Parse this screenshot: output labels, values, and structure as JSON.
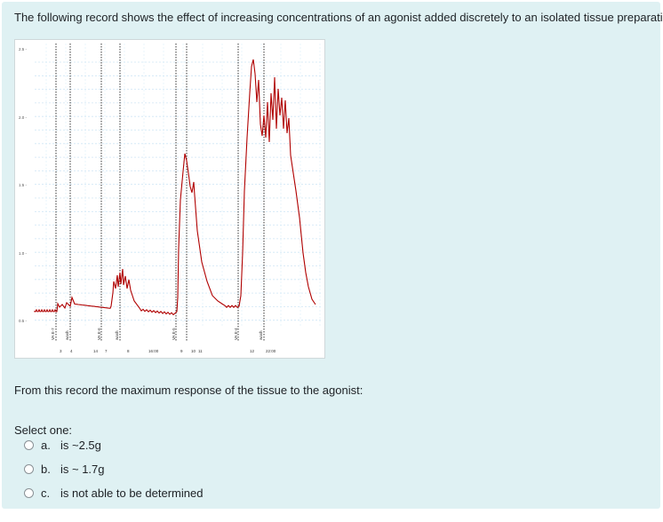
{
  "question": {
    "text": "The following record shows the effect of increasing concentrations of an agonist added discretely to an isolated tissue preparation.",
    "prompt": "From this record the maximum response of the tissue to the agonist:",
    "select_label": "Select one:"
  },
  "figure": {
    "y_ticks": [
      "2.5",
      "2.0",
      "1.5",
      "1.0",
      "0.5"
    ],
    "event_labels": [
      "VA E-7",
      "wash",
      "VA E-6",
      "wash",
      "VA E-5",
      "VA E-4",
      "wash"
    ],
    "time_labels": [
      "3",
      "4",
      "14",
      "7",
      "8",
      "16:00",
      "9",
      "10",
      "11",
      "12",
      "22:00"
    ],
    "trace_color": "#b00000",
    "marker_color": "#202020"
  },
  "options": [
    {
      "letter": "a.",
      "text": "is ~2.5g"
    },
    {
      "letter": "b.",
      "text": "is ~ 1.7g"
    },
    {
      "letter": "c.",
      "text": "is not able to be determined"
    }
  ]
}
